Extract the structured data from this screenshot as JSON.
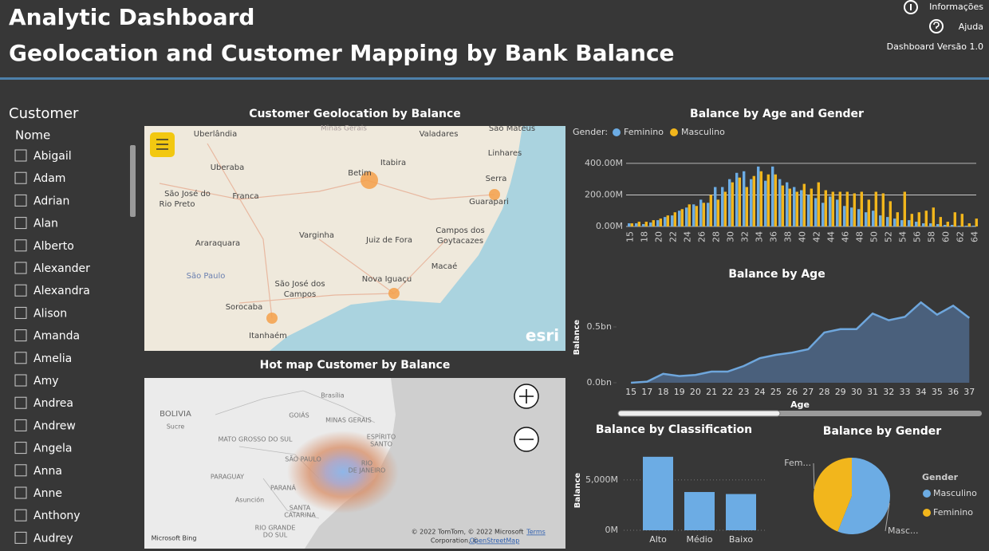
{
  "header": {
    "title_lines": [
      "Analytic Dashboard",
      "Geolocation and Customer Mapping by Bank Balance"
    ],
    "links": [
      "Informações",
      "Ajuda"
    ],
    "version": "Dashboard Versão 1.0"
  },
  "sidebar": {
    "title": "Customer",
    "field": "Nome",
    "items": [
      "Abigail",
      "Adam",
      "Adrian",
      "Alan",
      "Alberto",
      "Alexander",
      "Alexandra",
      "Alison",
      "Amanda",
      "Amelia",
      "Amy",
      "Andrea",
      "Andrew",
      "Angela",
      "Anna",
      "Anne",
      "Anthony",
      "Audrey"
    ]
  },
  "maps": [
    {
      "title": "Customer Geolocation by Balance",
      "labels": [
        "Uberlândia",
        "Uberaba",
        "Franca",
        "São José do",
        "Rio Preto",
        "Araraquara",
        "São Paulo",
        "Sorocaba",
        "Itanhaém",
        "Varginha",
        "Betim",
        "Itabira",
        "Juiz de Fora",
        "São José dos",
        "Campos",
        "Nova Iguaçu",
        "Campos dos",
        "Goytacazes",
        "Macaé",
        "Serra",
        "Guarapari",
        "Linhares",
        "Valadares",
        "São Mateus",
        "Minas Gerais",
        "esri"
      ]
    },
    {
      "title": "Hot map Customer by Balance",
      "labels": [
        "BOLIVIA",
        "Sucre",
        "Brasília",
        "GOIÁS",
        "MINAS GERAIS",
        "ESPÍRITO",
        "SANTO",
        "MATO GROSSO DO SUL",
        "SÃO PAULO",
        "RIO",
        "DE JANEIRO",
        "PARAGUAY",
        "PARANÁ",
        "Asunción",
        "SANTA",
        "CATARINA",
        "RIO GRANDE",
        "DO SUL",
        "Microsoft Bing",
        "© 2022 TomTom, © 2022 Microsoft",
        "Terms",
        "Corporation, ©",
        "OpenStreetMap"
      ]
    }
  ],
  "chart_data": [
    {
      "type": "grouped_bar",
      "title": "Balance by Age and Gender",
      "legend_title": "Gender:",
      "categories": [
        15,
        null,
        18,
        null,
        20,
        null,
        22,
        null,
        24,
        null,
        26,
        null,
        28,
        null,
        30,
        null,
        32,
        null,
        34,
        null,
        36,
        null,
        38,
        null,
        40,
        null,
        42,
        null,
        44,
        null,
        46,
        null,
        48,
        null,
        50,
        null,
        52,
        null,
        54,
        null,
        56,
        null,
        58,
        null,
        60,
        null,
        62,
        null,
        64
      ],
      "series": [
        {
          "name": "Feminino",
          "color": "#6cace4",
          "values": [
            20,
            20,
            15,
            25,
            40,
            60,
            70,
            100,
            120,
            140,
            170,
            150,
            250,
            250,
            300,
            340,
            350,
            300,
            380,
            290,
            380,
            300,
            280,
            250,
            230,
            200,
            180,
            150,
            190,
            170,
            130,
            120,
            110,
            90,
            100,
            70,
            60,
            50,
            40,
            40,
            30,
            20,
            20,
            15,
            10,
            10,
            5,
            5,
            5
          ]
        },
        {
          "name": "Masculino",
          "color": "#f2b61c",
          "values": [
            20,
            30,
            30,
            40,
            50,
            70,
            90,
            110,
            140,
            130,
            150,
            200,
            170,
            220,
            280,
            310,
            250,
            320,
            350,
            330,
            330,
            260,
            240,
            220,
            270,
            240,
            280,
            230,
            220,
            220,
            220,
            210,
            220,
            170,
            220,
            210,
            160,
            90,
            220,
            80,
            90,
            100,
            120,
            60,
            30,
            90,
            80,
            20,
            50
          ]
        }
      ],
      "ylim": [
        0,
        450
      ],
      "yticks": [
        {
          "value": 0,
          "label": "0.00M"
        },
        {
          "value": 200,
          "label": "200.00M"
        },
        {
          "value": 400,
          "label": "400.00M"
        }
      ],
      "grid": true
    },
    {
      "type": "area",
      "title": "Balance by Age",
      "x_label": "Age",
      "y_label": "Balance",
      "categories": [
        15,
        17,
        18,
        19,
        20,
        21,
        22,
        23,
        24,
        25,
        26,
        27,
        28,
        29,
        30,
        31,
        32,
        33,
        34,
        35,
        36,
        37
      ],
      "values": [
        0.0,
        0.01,
        0.08,
        0.06,
        0.07,
        0.1,
        0.1,
        0.15,
        0.22,
        0.25,
        0.27,
        0.3,
        0.45,
        0.48,
        0.48,
        0.62,
        0.56,
        0.59,
        0.72,
        0.61,
        0.69,
        0.58
      ],
      "color": "#6ea6dc",
      "ylim": [
        0,
        0.8
      ],
      "yticks": [
        {
          "value": 0,
          "label": "0.0bn"
        },
        {
          "value": 0.5,
          "label": "0.5bn"
        }
      ]
    },
    {
      "type": "bar",
      "title": "Balance by Classification",
      "y_label": "Balance",
      "categories": [
        "Alto",
        "Médio",
        "Baixo"
      ],
      "values": [
        7300,
        3800,
        3600
      ],
      "color": "#6cace4",
      "ylim": [
        0,
        8000
      ],
      "yticks": [
        {
          "value": 0,
          "label": "0M"
        },
        {
          "value": 5000,
          "label": "5,000M"
        }
      ],
      "grid": true
    },
    {
      "type": "pie",
      "title": "Balance by Gender",
      "legend_title": "Gender",
      "categories": [
        "Masculino",
        "Feminino"
      ],
      "values": [
        56,
        44
      ],
      "colors": [
        "#6cace4",
        "#f2b61c"
      ],
      "slice_labels": [
        "Masc...",
        "Fem..."
      ]
    }
  ]
}
